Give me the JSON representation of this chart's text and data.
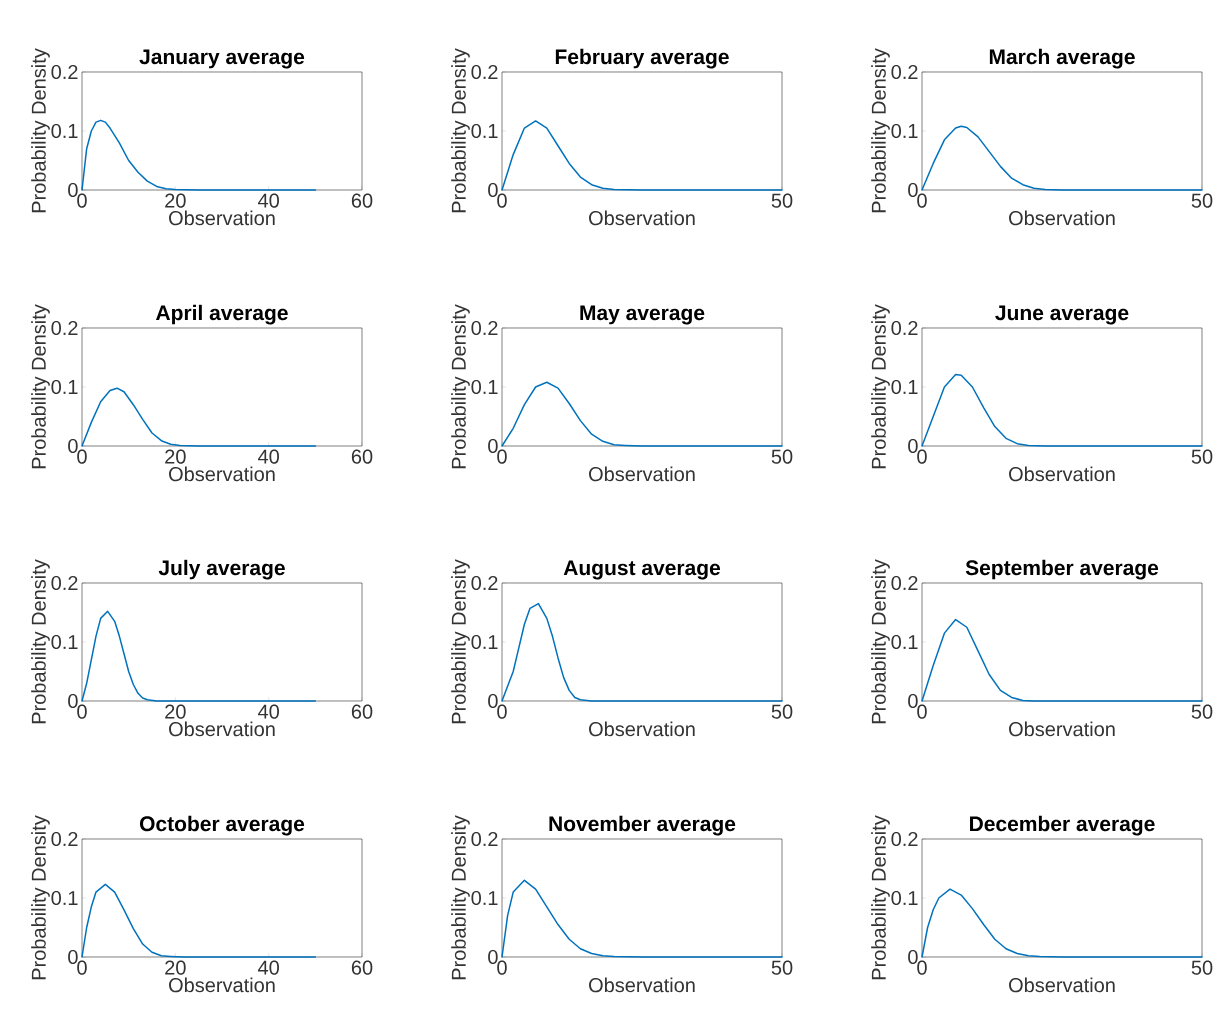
{
  "chart_data": [
    {
      "type": "line",
      "title": "January average",
      "xlabel": "Observation",
      "ylabel": "Probability Density",
      "color": "#0072bd",
      "xlim": [
        0,
        60
      ],
      "ylim": [
        0,
        0.2
      ],
      "xticks": [
        0,
        20,
        40,
        60
      ],
      "yticks": [
        0,
        0.1,
        0.2
      ],
      "x": [
        0,
        1,
        2,
        3,
        4,
        5,
        6,
        8,
        10,
        12,
        14,
        16,
        18,
        20,
        25,
        50
      ],
      "values": [
        0,
        0.07,
        0.1,
        0.115,
        0.118,
        0.115,
        0.105,
        0.08,
        0.05,
        0.03,
        0.015,
        0.006,
        0.002,
        0.001,
        0,
        0
      ]
    },
    {
      "type": "line",
      "title": "February average",
      "xlabel": "Observation",
      "ylabel": "Probability Density",
      "color": "#0072bd",
      "xlim": [
        0,
        50
      ],
      "ylim": [
        0,
        0.2
      ],
      "xticks": [
        0,
        50
      ],
      "yticks": [
        0,
        0.1,
        0.2
      ],
      "x": [
        0,
        2,
        4,
        6,
        8,
        10,
        12,
        14,
        16,
        18,
        20,
        25,
        50
      ],
      "values": [
        0,
        0.06,
        0.105,
        0.117,
        0.105,
        0.075,
        0.045,
        0.022,
        0.009,
        0.003,
        0.001,
        0,
        0
      ]
    },
    {
      "type": "line",
      "title": "March average",
      "xlabel": "Observation",
      "ylabel": "Probability Density",
      "color": "#0072bd",
      "xlim": [
        0,
        50
      ],
      "ylim": [
        0,
        0.2
      ],
      "xticks": [
        0,
        50
      ],
      "yticks": [
        0,
        0.1,
        0.2
      ],
      "x": [
        0,
        2,
        4,
        6,
        7,
        8,
        10,
        12,
        14,
        16,
        18,
        20,
        22,
        25,
        50
      ],
      "values": [
        0,
        0.045,
        0.085,
        0.105,
        0.108,
        0.106,
        0.09,
        0.065,
        0.04,
        0.02,
        0.009,
        0.003,
        0.001,
        0,
        0
      ]
    },
    {
      "type": "line",
      "title": "April average",
      "xlabel": "Observation",
      "ylabel": "Probability Density",
      "color": "#0072bd",
      "xlim": [
        0,
        60
      ],
      "ylim": [
        0,
        0.2
      ],
      "xticks": [
        0,
        20,
        40,
        60
      ],
      "yticks": [
        0,
        0.1,
        0.2
      ],
      "x": [
        0,
        2,
        4,
        6,
        7.5,
        9,
        11,
        13,
        15,
        17,
        19,
        21,
        25,
        50
      ],
      "values": [
        0,
        0.04,
        0.075,
        0.094,
        0.098,
        0.092,
        0.07,
        0.045,
        0.022,
        0.009,
        0.003,
        0.001,
        0,
        0
      ]
    },
    {
      "type": "line",
      "title": "May average",
      "xlabel": "Observation",
      "ylabel": "Probability Density",
      "color": "#0072bd",
      "xlim": [
        0,
        50
      ],
      "ylim": [
        0,
        0.2
      ],
      "xticks": [
        0,
        50
      ],
      "yticks": [
        0,
        0.1,
        0.2
      ],
      "x": [
        0,
        2,
        4,
        6,
        8,
        10,
        12,
        14,
        16,
        18,
        20,
        22,
        25,
        50
      ],
      "values": [
        0,
        0.03,
        0.07,
        0.1,
        0.108,
        0.098,
        0.072,
        0.043,
        0.02,
        0.008,
        0.002,
        0.001,
        0,
        0
      ]
    },
    {
      "type": "line",
      "title": "June average",
      "xlabel": "Observation",
      "ylabel": "Probability Density",
      "color": "#0072bd",
      "xlim": [
        0,
        50
      ],
      "ylim": [
        0,
        0.2
      ],
      "xticks": [
        0,
        50
      ],
      "yticks": [
        0,
        0.1,
        0.2
      ],
      "x": [
        0,
        2,
        4,
        6,
        7,
        9,
        11,
        13,
        15,
        17,
        19,
        22,
        50
      ],
      "values": [
        0,
        0.05,
        0.1,
        0.121,
        0.12,
        0.1,
        0.065,
        0.033,
        0.013,
        0.004,
        0.001,
        0,
        0
      ]
    },
    {
      "type": "line",
      "title": "July average",
      "xlabel": "Observation",
      "ylabel": "Probability Density",
      "color": "#0072bd",
      "xlim": [
        0,
        60
      ],
      "ylim": [
        0,
        0.2
      ],
      "xticks": [
        0,
        20,
        40,
        60
      ],
      "yticks": [
        0,
        0.1,
        0.2
      ],
      "x": [
        0,
        1,
        2,
        3,
        4,
        5.5,
        7,
        8,
        9,
        10,
        11,
        12,
        13,
        14,
        16,
        50
      ],
      "values": [
        0,
        0.03,
        0.07,
        0.11,
        0.14,
        0.152,
        0.135,
        0.11,
        0.08,
        0.05,
        0.028,
        0.013,
        0.005,
        0.002,
        0,
        0
      ]
    },
    {
      "type": "line",
      "title": "August average",
      "xlabel": "Observation",
      "ylabel": "Probability Density",
      "color": "#0072bd",
      "xlim": [
        0,
        50
      ],
      "ylim": [
        0,
        0.2
      ],
      "xticks": [
        0,
        50
      ],
      "yticks": [
        0,
        0.1,
        0.2
      ],
      "x": [
        0,
        2,
        3,
        4,
        5,
        6.5,
        8,
        9,
        10,
        11,
        12,
        13,
        14,
        16,
        50
      ],
      "values": [
        0,
        0.05,
        0.09,
        0.13,
        0.157,
        0.165,
        0.14,
        0.11,
        0.073,
        0.04,
        0.018,
        0.006,
        0.002,
        0,
        0
      ]
    },
    {
      "type": "line",
      "title": "September average",
      "xlabel": "Observation",
      "ylabel": "Probability Density",
      "color": "#0072bd",
      "xlim": [
        0,
        50
      ],
      "ylim": [
        0,
        0.2
      ],
      "xticks": [
        0,
        50
      ],
      "yticks": [
        0,
        0.1,
        0.2
      ],
      "x": [
        0,
        2,
        4,
        6,
        8,
        10,
        12,
        14,
        16,
        18,
        20,
        50
      ],
      "values": [
        0,
        0.06,
        0.115,
        0.138,
        0.125,
        0.085,
        0.045,
        0.018,
        0.006,
        0.001,
        0,
        0
      ]
    },
    {
      "type": "line",
      "title": "October average",
      "xlabel": "Observation",
      "ylabel": "Probability Density",
      "color": "#0072bd",
      "xlim": [
        0,
        60
      ],
      "ylim": [
        0,
        0.2
      ],
      "xticks": [
        0,
        20,
        40,
        60
      ],
      "yticks": [
        0,
        0.1,
        0.2
      ],
      "x": [
        0,
        1,
        2,
        3,
        5,
        7,
        9,
        11,
        13,
        15,
        17,
        19,
        22,
        50
      ],
      "values": [
        0,
        0.05,
        0.085,
        0.11,
        0.123,
        0.11,
        0.08,
        0.048,
        0.022,
        0.008,
        0.002,
        0.001,
        0,
        0
      ]
    },
    {
      "type": "line",
      "title": "November average",
      "xlabel": "Observation",
      "ylabel": "Probability Density",
      "color": "#0072bd",
      "xlim": [
        0,
        50
      ],
      "ylim": [
        0,
        0.2
      ],
      "xticks": [
        0,
        50
      ],
      "yticks": [
        0,
        0.1,
        0.2
      ],
      "x": [
        0,
        1,
        2,
        4,
        6,
        8,
        10,
        12,
        14,
        16,
        18,
        20,
        25,
        50
      ],
      "values": [
        0,
        0.07,
        0.11,
        0.13,
        0.115,
        0.085,
        0.055,
        0.03,
        0.014,
        0.006,
        0.002,
        0.001,
        0,
        0
      ]
    },
    {
      "type": "line",
      "title": "December average",
      "xlabel": "Observation",
      "ylabel": "Probability Density",
      "color": "#0072bd",
      "xlim": [
        0,
        50
      ],
      "ylim": [
        0,
        0.2
      ],
      "xticks": [
        0,
        50
      ],
      "yticks": [
        0,
        0.1,
        0.2
      ],
      "x": [
        0,
        1,
        2,
        3,
        5,
        7,
        9,
        11,
        13,
        15,
        17,
        19,
        21,
        25,
        50
      ],
      "values": [
        0,
        0.05,
        0.08,
        0.1,
        0.115,
        0.105,
        0.082,
        0.055,
        0.03,
        0.014,
        0.006,
        0.002,
        0.001,
        0,
        0
      ]
    }
  ]
}
